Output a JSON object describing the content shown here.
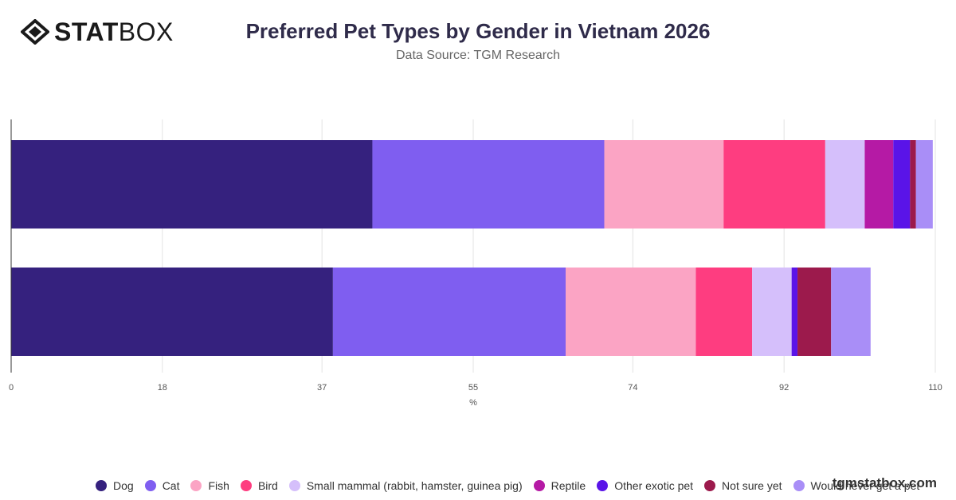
{
  "brand": {
    "logo_bold": "STAT",
    "logo_light": "BOX",
    "watermark": "tgmstatbox.com"
  },
  "chart_data": {
    "type": "bar",
    "orientation": "horizontal",
    "stacked": true,
    "title": "Preferred Pet Types by Gender in Vietnam 2026",
    "subtitle": "Data Source: TGM Research",
    "xlabel": "%",
    "xlim": [
      0,
      110
    ],
    "xticks": [
      0,
      18,
      37,
      55,
      74,
      92,
      110
    ],
    "grid": true,
    "legend_position": "bottom",
    "categories": [
      "",
      ""
    ],
    "series": [
      {
        "name": "Dog",
        "color": "#35217e",
        "values": [
          43,
          38.3
        ]
      },
      {
        "name": "Cat",
        "color": "#7f5ef0",
        "values": [
          27.6,
          27.7
        ]
      },
      {
        "name": "Fish",
        "color": "#fba4c4",
        "values": [
          14.2,
          15.5
        ]
      },
      {
        "name": "Bird",
        "color": "#fe3d80",
        "values": [
          12.1,
          6.7
        ]
      },
      {
        "name": "Small mammal (rabbit, hamster, guinea pig)",
        "color": "#d5bffb",
        "values": [
          4.7,
          4.7
        ]
      },
      {
        "name": "Reptile",
        "color": "#b51aa5",
        "values": [
          3.4,
          0
        ]
      },
      {
        "name": "Other exotic pet",
        "color": "#5a14e8",
        "values": [
          2,
          0.7
        ]
      },
      {
        "name": "Not sure yet",
        "color": "#9c1a4c",
        "values": [
          0.7,
          4
        ]
      },
      {
        "name": "Would never get a pet",
        "color": "#a98ef7",
        "values": [
          2,
          4.7
        ]
      }
    ]
  }
}
